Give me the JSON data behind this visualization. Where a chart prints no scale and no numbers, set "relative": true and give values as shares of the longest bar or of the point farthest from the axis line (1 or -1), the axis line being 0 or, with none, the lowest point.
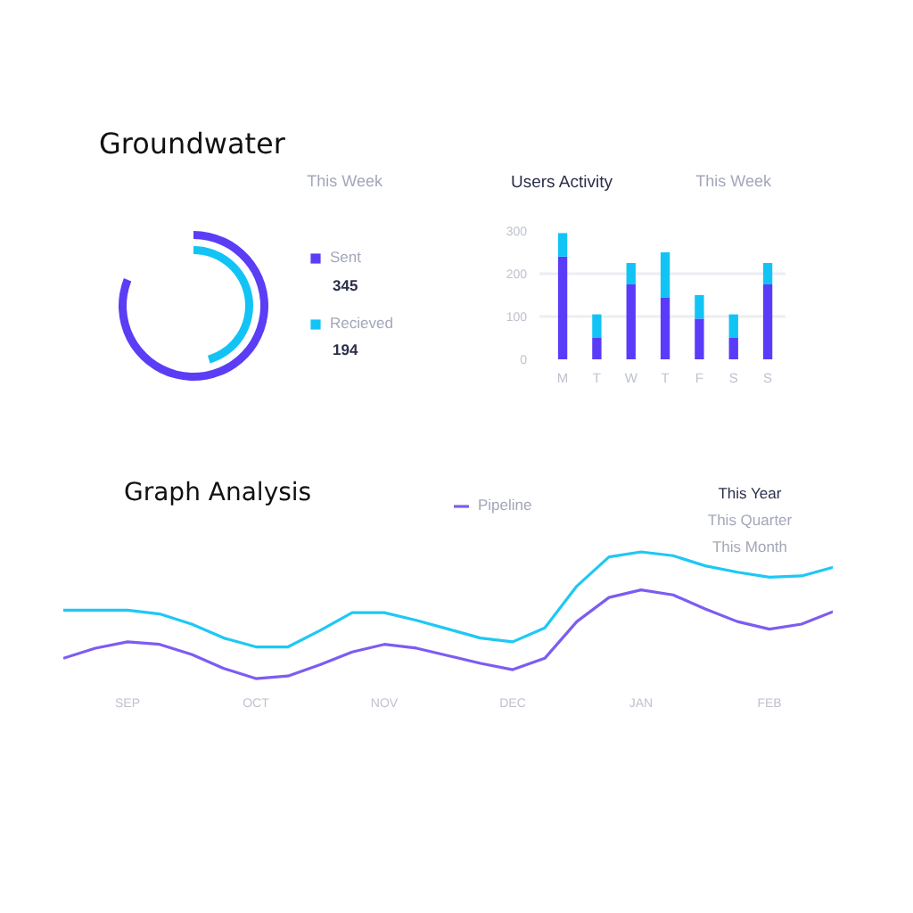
{
  "chart_data": [
    {
      "type": "other",
      "title": "Groundwater",
      "series": [
        {
          "name": "Sent",
          "color": "#5b3df5",
          "values": [
            345
          ]
        },
        {
          "name": "Recieved",
          "color": "#12c4f5",
          "values": [
            194
          ]
        }
      ],
      "data_labels": true,
      "legend": "right",
      "annotations": [
        "This Week"
      ]
    },
    {
      "type": "bar",
      "title": "Users Activity",
      "categories": [
        "M",
        "T",
        "W",
        "T",
        "F",
        "S",
        "S"
      ],
      "stacked": true,
      "series": [
        {
          "color": "#5a3cf8",
          "values": [
            240,
            50,
            175,
            145,
            95,
            50,
            175
          ]
        },
        {
          "color": "#12c4f6",
          "values": [
            55,
            55,
            50,
            105,
            55,
            55,
            50
          ]
        }
      ],
      "ylim": [
        0,
        300
      ],
      "yticks": [
        0,
        100,
        200,
        300
      ],
      "grid": "y",
      "annotations": [
        "This Week"
      ]
    },
    {
      "type": "line",
      "title": "Graph Analysis",
      "relative": true,
      "categories": [
        null,
        null,
        "SEP",
        null,
        null,
        null,
        "OCT",
        null,
        null,
        null,
        "NOV",
        null,
        null,
        null,
        "DEC",
        null,
        null,
        null,
        "JAN",
        null,
        null,
        null,
        "FEB",
        null,
        null
      ],
      "series": [
        {
          "color": "#1ec8f5",
          "values": [
            0.54,
            0.54,
            0.54,
            0.51,
            0.43,
            0.32,
            0.25,
            0.25,
            0.38,
            0.52,
            0.52,
            0.46,
            0.39,
            0.32,
            0.29,
            0.4,
            0.73,
            0.96,
            1.0,
            0.97,
            0.89,
            0.84,
            0.8,
            0.81,
            0.88
          ]
        },
        {
          "name": "Pipeline",
          "color": "#7d5cf2",
          "values": [
            0.16,
            0.24,
            0.29,
            0.27,
            0.19,
            0.08,
            0,
            0.02,
            0.11,
            0.21,
            0.27,
            0.24,
            0.18,
            0.12,
            0.07,
            0.16,
            0.45,
            0.64,
            0.7,
            0.66,
            0.55,
            0.45,
            0.39,
            0.43,
            0.53
          ]
        }
      ],
      "legend": "top",
      "annotations": [
        "This Year",
        "This Quarter",
        "This Month"
      ]
    }
  ]
}
